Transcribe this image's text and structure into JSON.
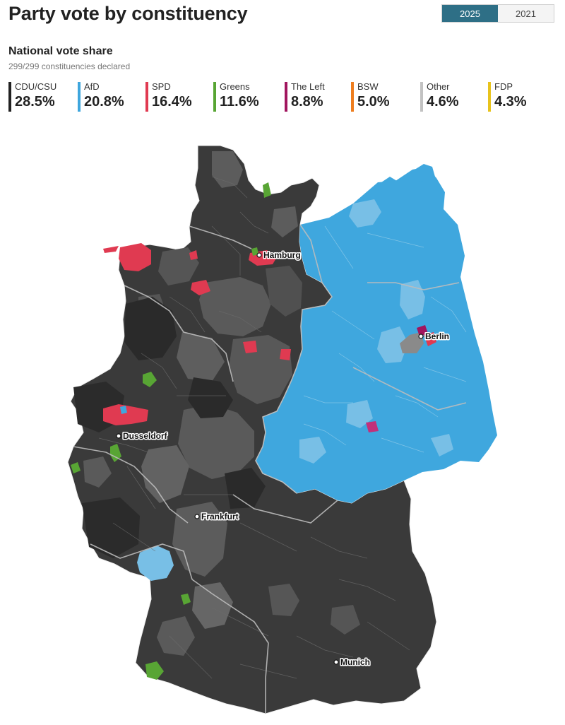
{
  "title": "Party vote by constituency",
  "year_toggle": {
    "options": [
      "2025",
      "2021"
    ],
    "selected": "2025"
  },
  "subtitle": "National vote share",
  "declared": "299/299 constituencies declared",
  "parties": [
    {
      "name": "CDU/CSU",
      "share": "28.5%",
      "color": "#222222"
    },
    {
      "name": "AfD",
      "share": "20.8%",
      "color": "#3ea6dd"
    },
    {
      "name": "SPD",
      "share": "16.4%",
      "color": "#e03a51"
    },
    {
      "name": "Greens",
      "share": "11.6%",
      "color": "#58a534"
    },
    {
      "name": "The Left",
      "share": "8.8%",
      "color": "#a1155e"
    },
    {
      "name": "BSW",
      "share": "5.0%",
      "color": "#ee7d1e"
    },
    {
      "name": "Other",
      "share": "4.6%",
      "color": "#c2c2c2"
    },
    {
      "name": "FDP",
      "share": "4.3%",
      "color": "#e8c31c"
    }
  ],
  "cities": [
    "Hamburg",
    "Berlin",
    "Dusseldorf",
    "Frankfurt",
    "Munich"
  ]
}
